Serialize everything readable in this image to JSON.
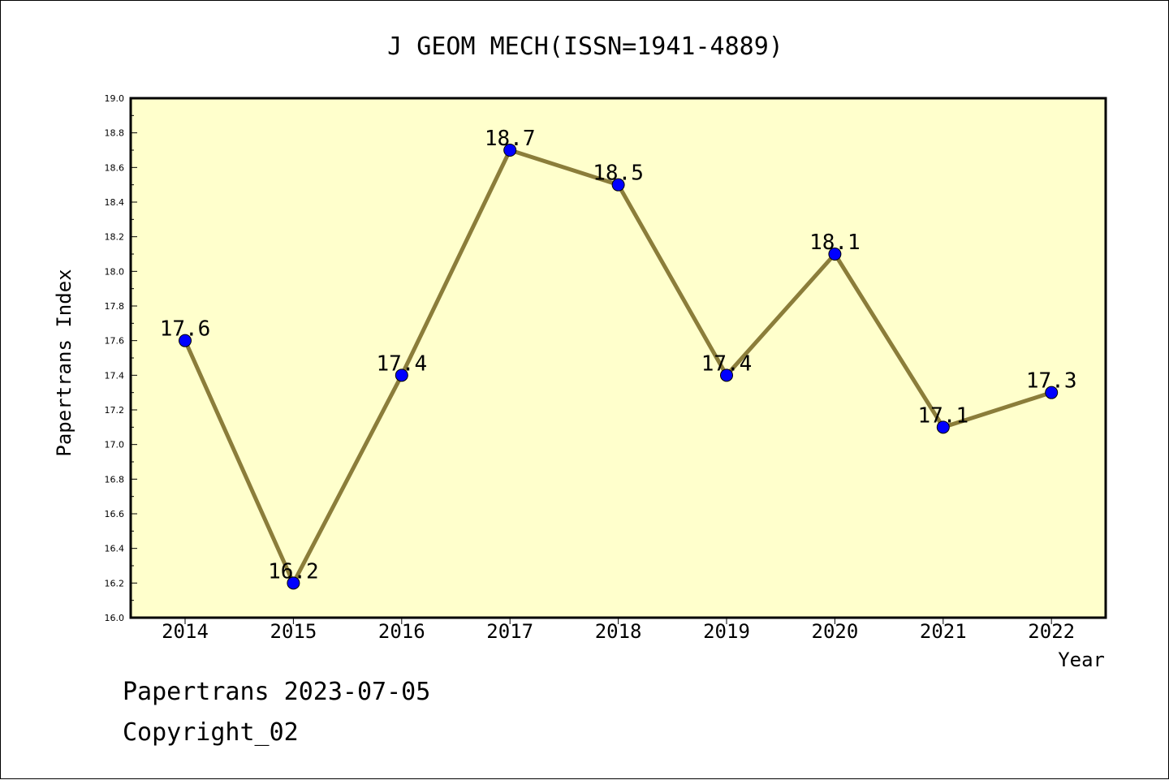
{
  "footer": {
    "line1": "Papertrans 2023-07-05",
    "line2": "Copyright_02"
  },
  "colors": {
    "plot_background": "#ffffcc",
    "line": "#8b7d3a",
    "marker": "#0000ff",
    "axis": "#000000"
  },
  "chart_data": {
    "type": "line",
    "title": "J GEOM MECH(ISSN=1941-4889)",
    "xlabel": "Year",
    "ylabel": "Papertrans Index",
    "categories": [
      "2014",
      "2015",
      "2016",
      "2017",
      "2018",
      "2019",
      "2020",
      "2021",
      "2022"
    ],
    "series": [
      {
        "values": [
          17.6,
          16.2,
          17.4,
          18.7,
          18.5,
          17.4,
          18.1,
          17.1,
          17.3
        ],
        "labels": [
          "17.6",
          "16.2",
          "17.4",
          "18.7",
          "18.5",
          "17.4",
          "18.1",
          "17.1",
          "17.3"
        ]
      }
    ],
    "ylim": [
      16.0,
      19.0
    ],
    "yticks": [
      "16.0",
      "16.2",
      "16.4",
      "16.6",
      "16.8",
      "17.0",
      "17.2",
      "17.4",
      "17.6",
      "17.8",
      "18.0",
      "18.2",
      "18.4",
      "18.6",
      "18.8",
      "19.0"
    ],
    "grid": false,
    "legend": "none"
  }
}
